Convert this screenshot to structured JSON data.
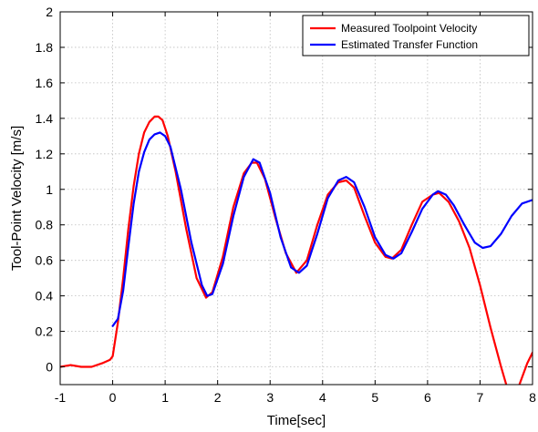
{
  "chart_data": {
    "type": "line",
    "title": "",
    "xlabel": "Time[sec]",
    "ylabel": "Tool-Point Velocity [m/s]",
    "xlim": [
      -1,
      8
    ],
    "ylim": [
      -0.1,
      2
    ],
    "grid": true,
    "legend_position": "top-right",
    "x_ticks": [
      -1,
      0,
      1,
      2,
      3,
      4,
      5,
      6,
      7,
      8
    ],
    "x_tick_labels": [
      "-1",
      "0",
      "1",
      "2",
      "3",
      "4",
      "5",
      "6",
      "7",
      "8"
    ],
    "y_ticks": [
      0,
      0.2,
      0.4,
      0.6,
      0.8,
      1,
      1.2,
      1.4,
      1.6,
      1.8,
      2
    ],
    "y_tick_labels": [
      "0",
      "0.2",
      "0.4",
      "0.6",
      "0.8",
      "1",
      "1.2",
      "1.4",
      "1.6",
      "1.8",
      "2"
    ],
    "series": [
      {
        "name": "Measured Toolpoint Velocity",
        "color": "#ff0000",
        "x": [
          -1,
          -0.8,
          -0.6,
          -0.4,
          -0.2,
          -0.05,
          0,
          0.1,
          0.2,
          0.3,
          0.4,
          0.5,
          0.6,
          0.7,
          0.8,
          0.87,
          0.95,
          1.05,
          1.2,
          1.4,
          1.6,
          1.78,
          1.9,
          2.1,
          2.3,
          2.5,
          2.65,
          2.75,
          2.9,
          3.1,
          3.3,
          3.5,
          3.7,
          3.9,
          4.1,
          4.3,
          4.45,
          4.6,
          4.8,
          5.0,
          5.2,
          5.32,
          5.5,
          5.7,
          5.9,
          6.1,
          6.22,
          6.4,
          6.6,
          6.8,
          7.0,
          7.2,
          7.4,
          7.5,
          7.6,
          7.75,
          7.9,
          8.0
        ],
        "y": [
          0.0,
          0.01,
          0.0,
          0.0,
          0.02,
          0.04,
          0.06,
          0.25,
          0.5,
          0.78,
          1.02,
          1.2,
          1.32,
          1.38,
          1.41,
          1.41,
          1.39,
          1.3,
          1.1,
          0.78,
          0.5,
          0.39,
          0.42,
          0.62,
          0.9,
          1.09,
          1.15,
          1.15,
          1.06,
          0.84,
          0.64,
          0.53,
          0.6,
          0.8,
          0.97,
          1.04,
          1.05,
          1.01,
          0.85,
          0.7,
          0.62,
          0.61,
          0.66,
          0.8,
          0.93,
          0.97,
          0.98,
          0.93,
          0.82,
          0.67,
          0.46,
          0.22,
          0.0,
          -0.1,
          -0.16,
          -0.1,
          0.02,
          0.08
        ]
      },
      {
        "name": "Estimated Transfer Function",
        "color": "#0000ff",
        "x": [
          0,
          0.1,
          0.2,
          0.3,
          0.4,
          0.5,
          0.6,
          0.7,
          0.8,
          0.9,
          1.0,
          1.1,
          1.3,
          1.5,
          1.7,
          1.8,
          1.9,
          2.1,
          2.3,
          2.5,
          2.68,
          2.8,
          3.0,
          3.2,
          3.4,
          3.55,
          3.7,
          3.9,
          4.1,
          4.3,
          4.45,
          4.6,
          4.8,
          5.0,
          5.2,
          5.35,
          5.5,
          5.7,
          5.9,
          6.1,
          6.2,
          6.35,
          6.5,
          6.7,
          6.9,
          7.05,
          7.2,
          7.4,
          7.6,
          7.8,
          8.0
        ],
        "y": [
          0.23,
          0.27,
          0.43,
          0.68,
          0.92,
          1.1,
          1.21,
          1.28,
          1.31,
          1.32,
          1.3,
          1.24,
          1.0,
          0.7,
          0.46,
          0.4,
          0.41,
          0.58,
          0.85,
          1.07,
          1.17,
          1.15,
          0.98,
          0.73,
          0.56,
          0.53,
          0.57,
          0.75,
          0.95,
          1.05,
          1.07,
          1.04,
          0.9,
          0.73,
          0.63,
          0.61,
          0.64,
          0.76,
          0.89,
          0.97,
          0.99,
          0.97,
          0.91,
          0.8,
          0.7,
          0.67,
          0.68,
          0.75,
          0.85,
          0.92,
          0.94
        ]
      }
    ]
  }
}
